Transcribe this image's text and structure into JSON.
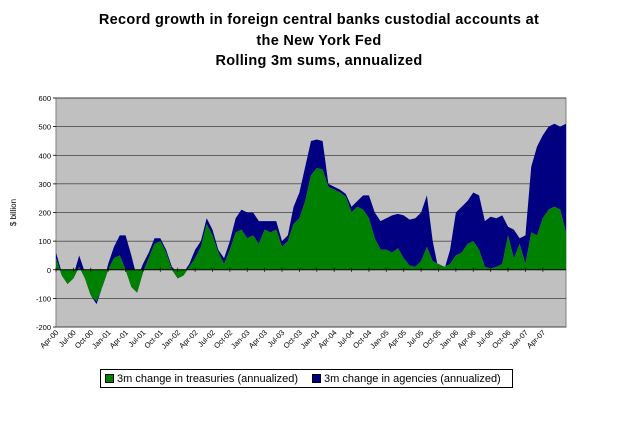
{
  "title_lines": [
    "Record growth in foreign central banks custodial accounts at",
    "the New York Fed",
    "Rolling 3m sums, annualized"
  ],
  "colors": {
    "plot_bg": "#C0C0C0",
    "treasuries": "#008000",
    "agencies": "#000080"
  },
  "chart_data": {
    "type": "area",
    "title": "Record growth in foreign central banks custodial accounts at the New York Fed — Rolling 3m sums, annualized",
    "ylabel": "$ billion",
    "xlabel": "",
    "ylim": [
      -200,
      600
    ],
    "yticks": [
      -200,
      -100,
      0,
      100,
      200,
      300,
      400,
      500,
      600
    ],
    "grid": true,
    "legend_position": "bottom",
    "stacked": true,
    "x_tick_labels": [
      "Apr-00",
      "Jul-00",
      "Oct-00",
      "Jan-01",
      "Apr-01",
      "Jul-01",
      "Oct-01",
      "Jan-02",
      "Apr-02",
      "Jul-02",
      "Oct-02",
      "Jan-03",
      "Apr-03",
      "Jul-03",
      "Oct-03",
      "Jan-04",
      "Apr-04",
      "Jul-04",
      "Oct-04",
      "Jan-05",
      "Apr-05",
      "Jul-05",
      "Oct-05",
      "Jan-06",
      "Apr-06",
      "Jul-06",
      "Oct-06",
      "Jan-07",
      "Apr-07"
    ],
    "series": [
      {
        "name": "3m change in treasuries (annualized)",
        "values": [
          40,
          -20,
          -50,
          -30,
          10,
          -30,
          -90,
          -110,
          -60,
          0,
          40,
          50,
          0,
          -60,
          -80,
          -10,
          40,
          90,
          100,
          60,
          0,
          -30,
          -20,
          10,
          40,
          80,
          160,
          120,
          60,
          20,
          70,
          130,
          140,
          110,
          120,
          90,
          140,
          130,
          140,
          80,
          100,
          160,
          180,
          240,
          330,
          355,
          350,
          290,
          280,
          270,
          255,
          200,
          220,
          210,
          180,
          110,
          70,
          70,
          60,
          75,
          40,
          15,
          10,
          30,
          80,
          30,
          20,
          10,
          20,
          50,
          60,
          90,
          100,
          70,
          10,
          5,
          10,
          20,
          120,
          40,
          90,
          20,
          130,
          120,
          180,
          210,
          220,
          210,
          130
        ]
      },
      {
        "name": "3m change in agencies (annualized)",
        "values": [
          20,
          10,
          10,
          10,
          40,
          20,
          0,
          -10,
          0,
          20,
          40,
          70,
          120,
          110,
          50,
          30,
          20,
          20,
          10,
          10,
          10,
          20,
          10,
          10,
          30,
          20,
          20,
          20,
          10,
          20,
          30,
          50,
          70,
          90,
          80,
          80,
          30,
          40,
          30,
          20,
          20,
          60,
          90,
          120,
          120,
          100,
          100,
          10,
          10,
          10,
          10,
          20,
          20,
          50,
          80,
          90,
          100,
          110,
          130,
          120,
          150,
          160,
          170,
          170,
          180,
          70,
          -20,
          -10,
          50,
          150,
          160,
          150,
          170,
          190,
          160,
          180,
          170,
          170,
          30,
          100,
          20,
          100,
          230,
          310,
          290,
          290,
          290,
          290,
          380
        ]
      }
    ]
  }
}
